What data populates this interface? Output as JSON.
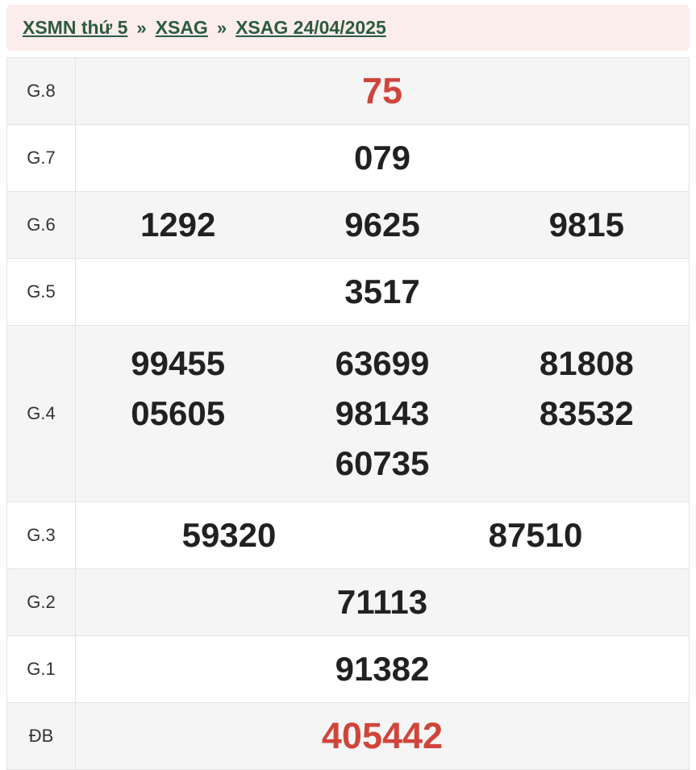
{
  "breadcrumb": {
    "separator": "»",
    "items": [
      {
        "label": "XSMN thứ 5"
      },
      {
        "label": "XSAG"
      },
      {
        "label": "XSAG 24/04/2025"
      }
    ]
  },
  "results": {
    "rows": [
      {
        "label": "G.8",
        "values": [
          "75"
        ],
        "highlight": true
      },
      {
        "label": "G.7",
        "values": [
          "079"
        ]
      },
      {
        "label": "G.6",
        "values": [
          "1292",
          "9625",
          "9815"
        ]
      },
      {
        "label": "G.5",
        "values": [
          "3517"
        ]
      },
      {
        "label": "G.4",
        "values": [
          "99455",
          "63699",
          "81808",
          "05605",
          "98143",
          "83532",
          "60735"
        ]
      },
      {
        "label": "G.3",
        "values": [
          "59320",
          "87510"
        ]
      },
      {
        "label": "G.2",
        "values": [
          "71113"
        ]
      },
      {
        "label": "G.1",
        "values": [
          "91382"
        ]
      },
      {
        "label": "ĐB",
        "values": [
          "405442"
        ],
        "highlight": true
      }
    ]
  },
  "colors": {
    "accent_red": "#d0453a",
    "link_green": "#2d5b3e",
    "header_bg": "#fbedeb",
    "row_alt_bg": "#f5f5f5",
    "border": "#e3e3e3"
  }
}
